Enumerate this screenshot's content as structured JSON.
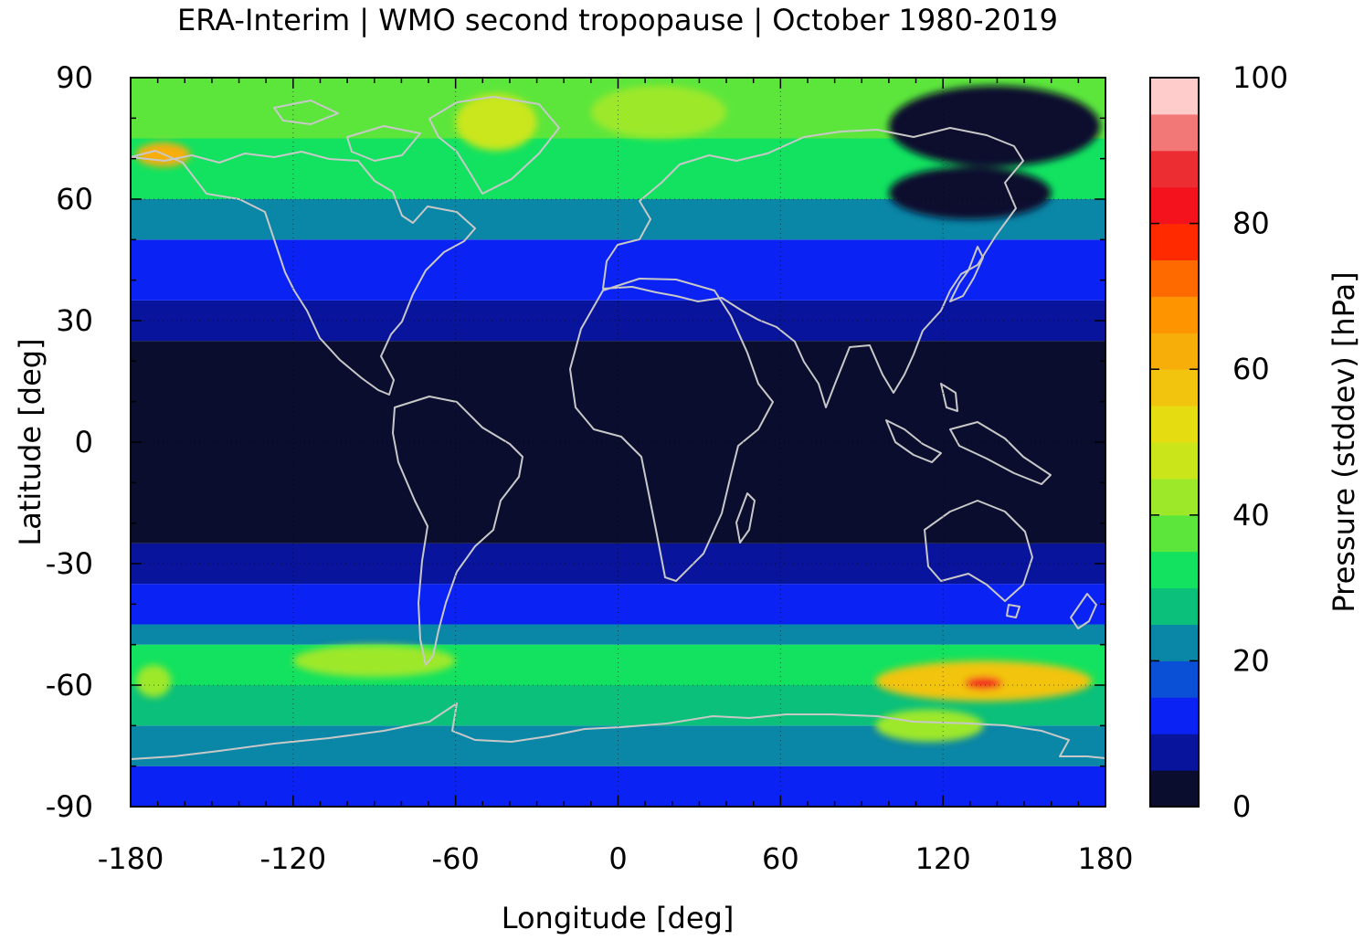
{
  "chart_data": {
    "type": "heatmap",
    "title": "ERA-Interim | WMO second tropopause | October 1980-2019",
    "xlabel": "Longitude [deg]",
    "ylabel": "Latitude [deg]",
    "xlim": [
      -180,
      180
    ],
    "ylim": [
      -90,
      90
    ],
    "x_ticks": [
      "-180",
      "-120",
      "-60",
      "0",
      "60",
      "120",
      "180"
    ],
    "y_ticks": [
      "90",
      "60",
      "30",
      "0",
      "-30",
      "-60",
      "-90"
    ],
    "grid": true,
    "colorbar": {
      "label": "Pressure (stddev) [hPa]",
      "range": [
        0,
        100
      ],
      "ticks": [
        "100",
        "80",
        "60",
        "40",
        "20",
        "0"
      ],
      "colors": [
        "#0a0d2e",
        "#08149b",
        "#0a22f3",
        "#0a50d6",
        "#0a86a6",
        "#0ac07a",
        "#12e260",
        "#5ce63c",
        "#9ee82a",
        "#cae61a",
        "#e6dc12",
        "#f2c40e",
        "#f8ae08",
        "#fe9400",
        "#ff6a00",
        "#ff2a00",
        "#f4121c",
        "#ec2e32",
        "#f27878",
        "#ffcccc"
      ]
    },
    "zonal_bands": [
      {
        "lat": [
          -90,
          -80
        ],
        "value": 12
      },
      {
        "lat": [
          -80,
          -70
        ],
        "value": 20
      },
      {
        "lat": [
          -70,
          -60
        ],
        "value": 28
      },
      {
        "lat": [
          -60,
          -50
        ],
        "value": 34
      },
      {
        "lat": [
          -50,
          -45
        ],
        "value": 22
      },
      {
        "lat": [
          -45,
          -35
        ],
        "value": 13
      },
      {
        "lat": [
          -35,
          -25
        ],
        "value": 7
      },
      {
        "lat": [
          -25,
          25
        ],
        "value": 2
      },
      {
        "lat": [
          25,
          35
        ],
        "value": 7
      },
      {
        "lat": [
          35,
          50
        ],
        "value": 12
      },
      {
        "lat": [
          50,
          60
        ],
        "value": 20
      },
      {
        "lat": [
          60,
          75
        ],
        "value": 30
      },
      {
        "lat": [
          75,
          90
        ],
        "value": 36
      }
    ],
    "highlights": [
      {
        "lon": [
          -178,
          -158
        ],
        "lat": [
          68,
          74
        ],
        "value": 64
      },
      {
        "lon": [
          -60,
          -30
        ],
        "lat": [
          72,
          86
        ],
        "value": 46
      },
      {
        "lon": [
          -10,
          40
        ],
        "lat": [
          75,
          88
        ],
        "value": 42
      },
      {
        "lon": [
          100,
          178
        ],
        "lat": [
          68,
          88
        ],
        "value": 4
      },
      {
        "lon": [
          100,
          160
        ],
        "lat": [
          55,
          68
        ],
        "value": 4
      },
      {
        "lon": [
          95,
          175
        ],
        "lat": [
          -64,
          -54
        ],
        "value": 58
      },
      {
        "lon": [
          128,
          142
        ],
        "lat": [
          -61,
          -58
        ],
        "value": 82
      },
      {
        "lon": [
          95,
          135
        ],
        "lat": [
          -74,
          -66
        ],
        "value": 44
      },
      {
        "lon": [
          -178,
          -165
        ],
        "lat": [
          -63,
          -55
        ],
        "value": 42
      },
      {
        "lon": [
          -120,
          -60
        ],
        "lat": [
          -58,
          -50
        ],
        "value": 40
      }
    ]
  }
}
